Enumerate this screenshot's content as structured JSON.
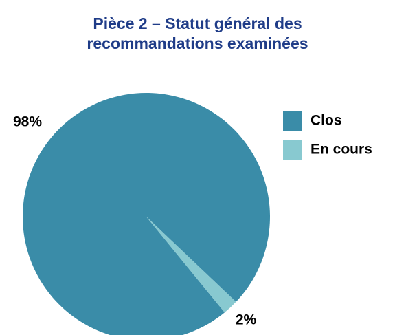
{
  "chart_data": {
    "type": "pie",
    "title": "Pièce 2 – Statut général des recommandations examinées",
    "categories": [
      "Clos",
      "En cours"
    ],
    "values": [
      98,
      2
    ],
    "value_labels": [
      "98%",
      "2%"
    ],
    "colors": [
      "#3a8ca8",
      "#88c9d0"
    ],
    "legend": "right"
  }
}
